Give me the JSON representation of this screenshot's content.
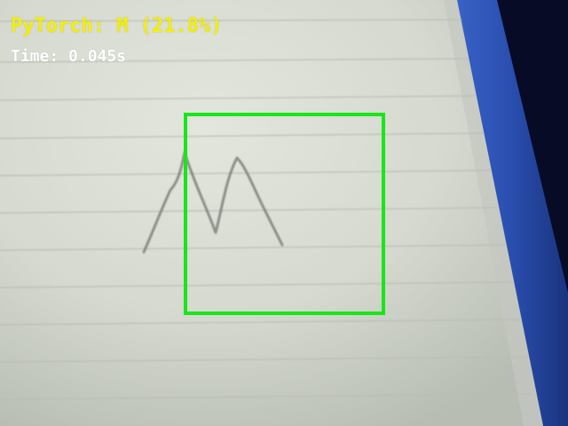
{
  "overlay": {
    "prediction_text": "PyTorch: M (21.8%)",
    "timing_text": "Time: 0.045s",
    "prediction_color": "#f4f000",
    "timing_color": "#ffffff"
  },
  "detection": {
    "library": "PyTorch",
    "predicted_letter": "M",
    "confidence_percent": 21.8,
    "inference_time_s": 0.045,
    "box_color": "#19e619"
  }
}
